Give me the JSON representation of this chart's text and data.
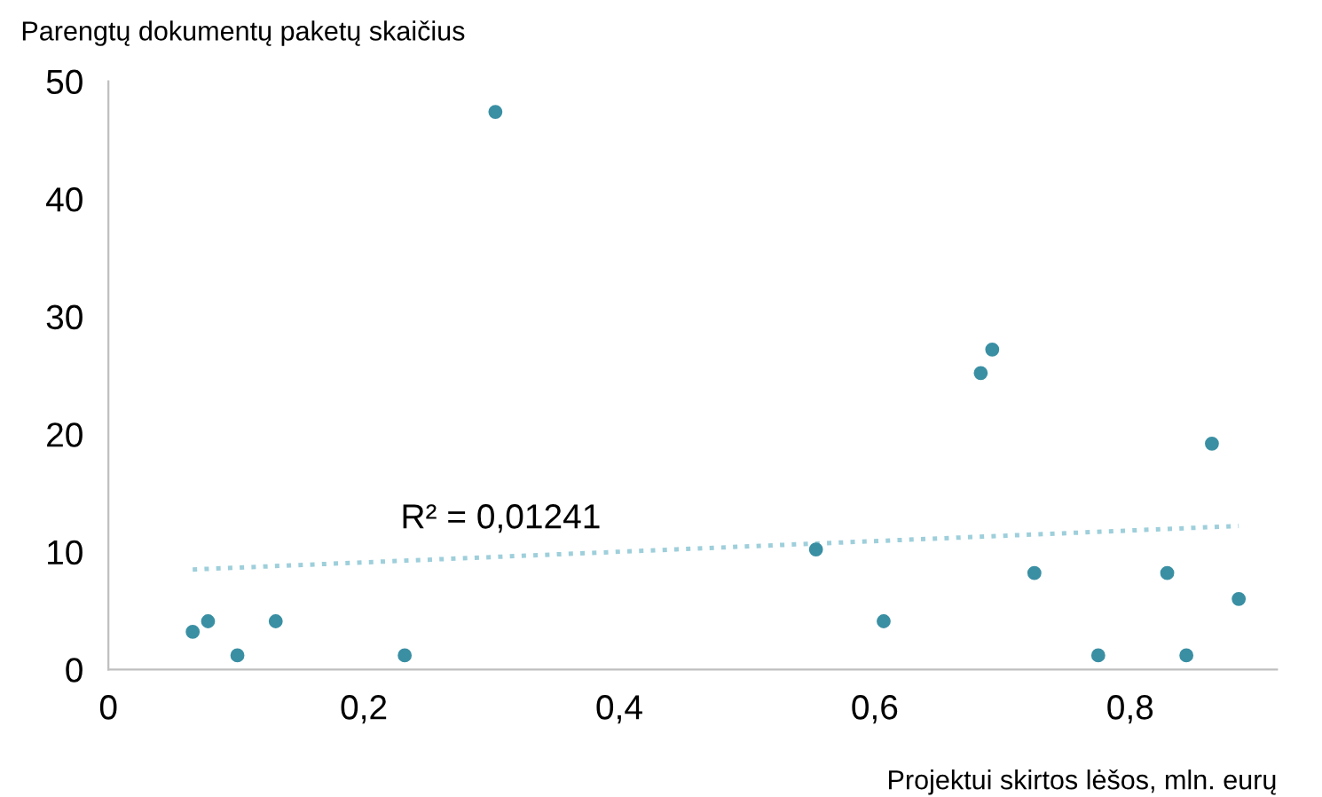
{
  "chart_data": {
    "type": "scatter",
    "xlabel": "Projektui skirtos lėšos, mln. eurų",
    "ylabel": "Parengtų dokumentų paketų skaičius",
    "annotations": [
      "R² = 0,01241"
    ],
    "series": [
      {
        "color": "#3a8fa3",
        "marker": "circle",
        "x": [
          0.066,
          0.078,
          0.101,
          0.131,
          0.232,
          0.303,
          0.554,
          0.607,
          0.683,
          0.692,
          0.725,
          0.775,
          0.829,
          0.844,
          0.864,
          0.885
        ],
        "values": [
          3.2,
          4.1,
          1.2,
          4.1,
          1.2,
          47.4,
          10.2,
          4.1,
          25.2,
          27.2,
          8.2,
          1.2,
          8.2,
          1.2,
          19.2,
          6.0
        ]
      },
      {
        "type": "line",
        "color": "#9ecfdb",
        "line_style": "dotted",
        "x": [
          0.066,
          0.885
        ],
        "values": [
          8.5,
          12.2
        ]
      }
    ],
    "xlim": [
      0,
      0.915
    ],
    "ylim": [
      0,
      50
    ],
    "xticks": [
      0,
      {
        "value": 0.2,
        "label": "0,2"
      },
      {
        "value": 0.4,
        "label": "0,4"
      },
      {
        "value": 0.6,
        "label": "0,6"
      },
      {
        "value": 0.8,
        "label": "0,8"
      }
    ],
    "yticks": [
      0,
      10,
      20,
      30,
      40,
      50
    ],
    "grid": false,
    "legend": false
  }
}
